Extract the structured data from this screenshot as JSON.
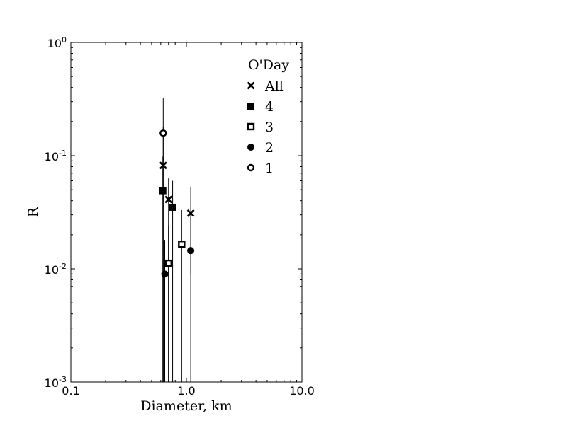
{
  "chart_data": {
    "type": "scatter",
    "xscale": "log",
    "yscale": "log",
    "xlim": [
      0.1,
      10.0
    ],
    "ylim": [
      0.001,
      1.0
    ],
    "xlabel": "Diameter, km",
    "ylabel": "R",
    "x_ticks": [
      {
        "value": 0.1,
        "label": "0.1"
      },
      {
        "value": 1.0,
        "label": "1.0"
      },
      {
        "value": 10.0,
        "label": "10.0"
      }
    ],
    "y_ticks": [
      {
        "value": 0.001,
        "base": "10",
        "exp": "-3"
      },
      {
        "value": 0.01,
        "base": "10",
        "exp": "-2"
      },
      {
        "value": 0.1,
        "base": "10",
        "exp": "-1"
      },
      {
        "value": 1.0,
        "base": "10",
        "exp": "0"
      }
    ],
    "grid": false,
    "legend": {
      "title": "O'Day",
      "position": "top-right"
    },
    "series": [
      {
        "name": "All",
        "marker": "x",
        "points": [
          {
            "x": 0.63,
            "y": 0.082,
            "y_low": 0.001,
            "y_high": 0.18
          },
          {
            "x": 0.7,
            "y": 0.041,
            "y_low": 0.001,
            "y_high": 0.063
          },
          {
            "x": 1.09,
            "y": 0.031,
            "y_low": 0.009,
            "y_high": 0.053
          }
        ]
      },
      {
        "name": "4",
        "marker": "square-filled",
        "points": [
          {
            "x": 0.625,
            "y": 0.049,
            "y_low": 0.001,
            "y_high": 0.098
          },
          {
            "x": 0.76,
            "y": 0.035,
            "y_low": 0.001,
            "y_high": 0.06
          }
        ]
      },
      {
        "name": "3",
        "marker": "square-open",
        "points": [
          {
            "x": 0.7,
            "y": 0.0112,
            "y_low": 0.001,
            "y_high": 0.024
          },
          {
            "x": 0.91,
            "y": 0.0165,
            "y_low": 0.001,
            "y_high": 0.033
          }
        ]
      },
      {
        "name": "2",
        "marker": "circle-filled",
        "points": [
          {
            "x": 0.65,
            "y": 0.009,
            "y_low": 0.001,
            "y_high": 0.018
          },
          {
            "x": 1.09,
            "y": 0.0145,
            "y_low": 0.001,
            "y_high": 0.03
          }
        ]
      },
      {
        "name": "1",
        "marker": "circle-open",
        "points": [
          {
            "x": 0.63,
            "y": 0.158,
            "y_low": 0.001,
            "y_high": 0.32
          }
        ]
      }
    ]
  }
}
